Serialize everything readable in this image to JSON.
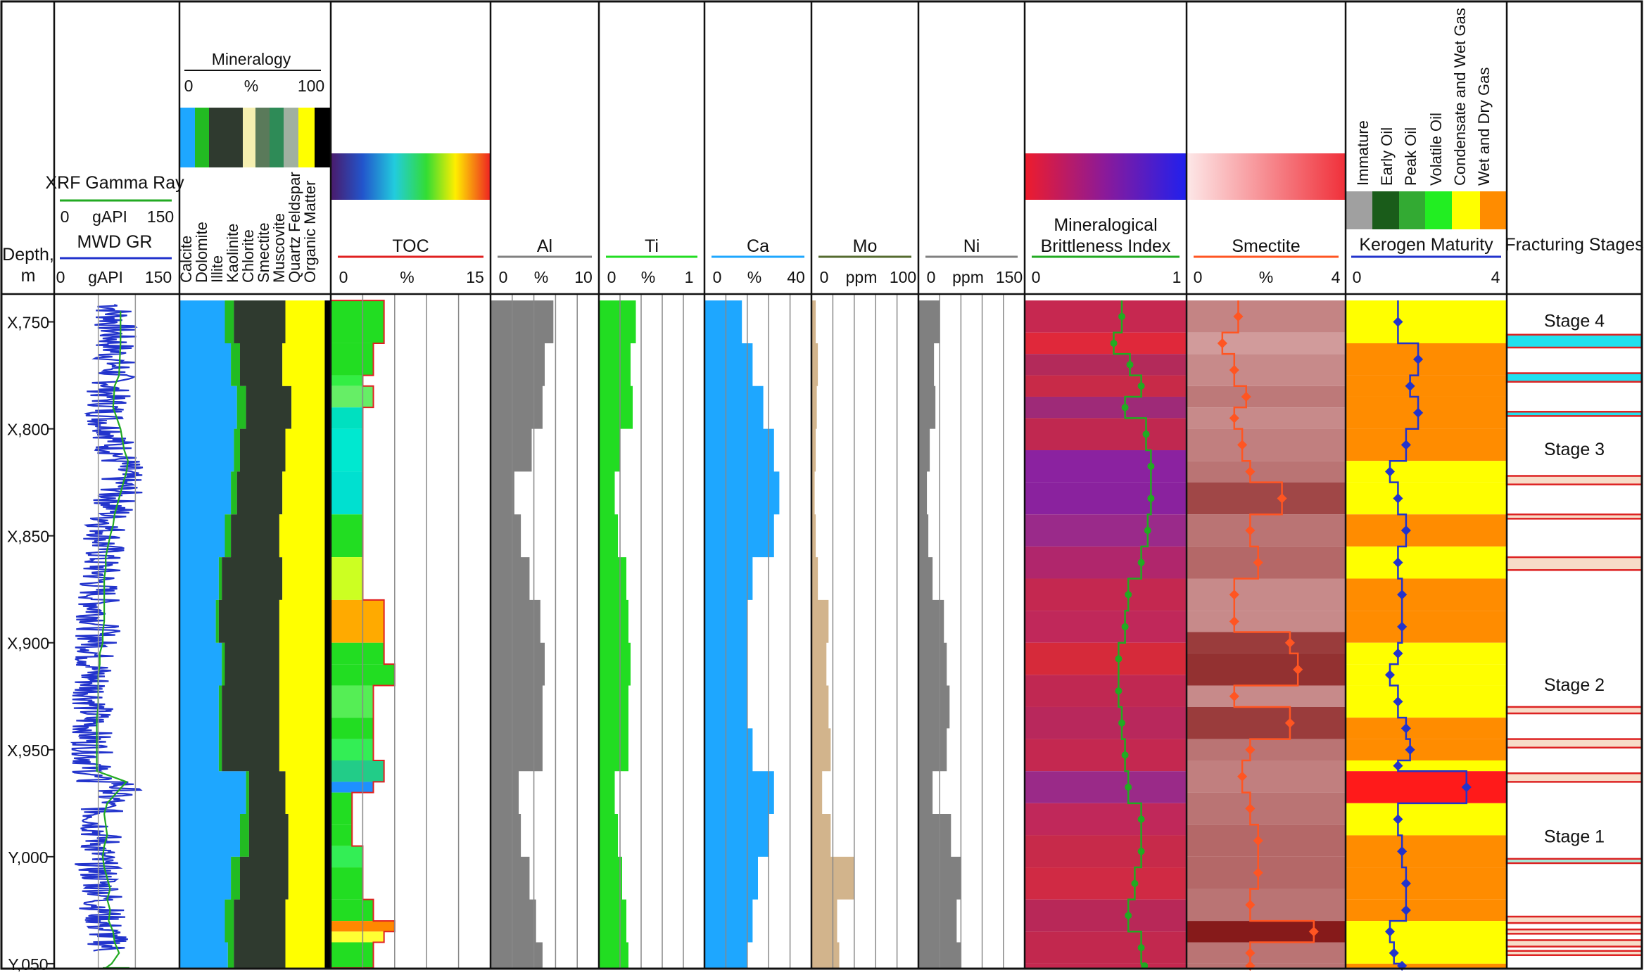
{
  "chart_data": {
    "type": "well-log",
    "depth_track": {
      "label": "Depth,",
      "unit": "m",
      "range": [
        4737,
        5052
      ],
      "ticks": [
        "X,750",
        "X,800",
        "X,850",
        "X,900",
        "X,950",
        "Y,000",
        "Y,050"
      ],
      "tick_values": [
        4750,
        4800,
        4850,
        4900,
        4950,
        5000,
        5050
      ]
    },
    "gamma_track": {
      "curves": [
        {
          "name": "XRF Gamma Ray",
          "min": "0",
          "unit": "gAPI",
          "max": "150",
          "color": "#22aa22",
          "x": [
            80,
            80,
            78,
            72,
            70,
            80,
            85,
            90,
            88,
            80,
            72,
            70,
            66,
            60,
            60,
            58,
            58,
            58,
            56,
            56,
            52,
            52,
            50,
            50,
            50,
            50,
            48,
            48,
            48,
            48,
            48,
            48,
            88,
            75,
            62,
            58,
            60,
            62,
            58,
            56,
            58,
            62,
            66,
            62,
            66,
            64,
            70,
            72,
            78,
            72,
            68,
            60,
            56,
            60,
            92
          ],
          "y": [
            4745,
            4760,
            4775,
            4780,
            4790,
            4800,
            4810,
            4815,
            4820,
            4830,
            4840,
            4845,
            4850,
            4860,
            4865,
            4870,
            4880,
            4890,
            4895,
            4900,
            4905,
            4910,
            4915,
            4920,
            4925,
            4930,
            4935,
            4940,
            4945,
            4950,
            4955,
            4960,
            4965,
            4970,
            4975,
            4980,
            4985,
            4990,
            4995,
            5000,
            5005,
            5010,
            5015,
            5020,
            5025,
            5030,
            5035,
            5040,
            5045,
            5048,
            5050,
            5052,
            5052,
            5052,
            5052
          ]
        },
        {
          "name": "MWD GR",
          "min": "0",
          "unit": "gAPI",
          "max": "150",
          "color": "#2233cc"
        }
      ],
      "gridlines": [
        50,
        100
      ]
    },
    "mineralogy": {
      "title": "Mineralogy",
      "scale_min": "0",
      "scale_unit": "%",
      "scale_max": "100",
      "components": [
        {
          "name": "Calcite",
          "color": "#1ea7ff"
        },
        {
          "name": "Dolomite",
          "color": "#22bb22"
        },
        {
          "name": "Illite",
          "color": "#2f3a2f"
        },
        {
          "name": "Kaolinite",
          "color": "#f5efb0"
        },
        {
          "name": "Chlorite",
          "color": "#5a7a5a"
        },
        {
          "name": "Smectite",
          "color": "#2e8b57"
        },
        {
          "name": "Muscovite",
          "color": "#a0b0a0"
        },
        {
          "name": "Quartz Feldspar",
          "color": "#ffff00"
        },
        {
          "name": "Organic Matter",
          "color": "#000000"
        }
      ],
      "depth": [
        4740,
        4760,
        4780,
        4800,
        4820,
        4840,
        4860,
        4880,
        4900,
        4920,
        4940,
        4960,
        4980,
        5000,
        5020,
        5040,
        5052
      ],
      "calcite": [
        30,
        34,
        38,
        36,
        34,
        30,
        26,
        24,
        28,
        26,
        26,
        44,
        40,
        34,
        30,
        32,
        32
      ],
      "dolomite": [
        6,
        6,
        6,
        4,
        4,
        4,
        2,
        2,
        2,
        2,
        2,
        2,
        6,
        6,
        6,
        4,
        4
      ],
      "clay": [
        34,
        28,
        30,
        30,
        30,
        32,
        40,
        40,
        36,
        38,
        38,
        24,
        26,
        32,
        34,
        34,
        34
      ],
      "quartz_feldspar": [
        26,
        28,
        22,
        26,
        28,
        30,
        28,
        30,
        30,
        30,
        30,
        26,
        24,
        24,
        26,
        26,
        26
      ],
      "organic": [
        4,
        4,
        4,
        4,
        4,
        4,
        4,
        4,
        4,
        4,
        4,
        4,
        4,
        4,
        4,
        4,
        4
      ]
    },
    "tracks": [
      {
        "name": "TOC",
        "min": "0",
        "unit": "%",
        "max": "15",
        "color": "#e02020",
        "fill": "#22dd22",
        "depth": [
          4740,
          4760,
          4775,
          4780,
          4790,
          4800,
          4820,
          4840,
          4860,
          4880,
          4900,
          4910,
          4920,
          4935,
          4945,
          4955,
          4965,
          4970,
          4985,
          4995,
          5005,
          5020,
          5030,
          5035,
          5040,
          5052
        ],
        "values": [
          5,
          4,
          3,
          4,
          3,
          3,
          3,
          3,
          3,
          5,
          5,
          6,
          4,
          4,
          4,
          5,
          4,
          2,
          2,
          3,
          3,
          4,
          6,
          5,
          4,
          4
        ]
      },
      {
        "name": "Al",
        "min": "0",
        "unit": "%",
        "max": "10",
        "color": "#808080",
        "depth": [
          4740,
          4760,
          4780,
          4800,
          4820,
          4840,
          4860,
          4880,
          4900,
          4920,
          4940,
          4960,
          4980,
          5000,
          5020,
          5040,
          5052
        ],
        "values": [
          5.8,
          5.0,
          4.8,
          3.8,
          2.2,
          2.8,
          3.6,
          4.6,
          5.0,
          4.8,
          4.8,
          2.6,
          2.8,
          3.6,
          4.2,
          4.8,
          4.8
        ]
      },
      {
        "name": "Ti",
        "min": "0",
        "unit": "%",
        "max": "1",
        "color": "#22dd22",
        "depth": [
          4740,
          4760,
          4780,
          4800,
          4820,
          4840,
          4860,
          4880,
          4900,
          4920,
          4940,
          4960,
          4980,
          5000,
          5020,
          5040,
          5052
        ],
        "values": [
          0.35,
          0.3,
          0.32,
          0.2,
          0.15,
          0.18,
          0.26,
          0.28,
          0.3,
          0.28,
          0.28,
          0.15,
          0.18,
          0.22,
          0.26,
          0.28,
          0.28
        ]
      },
      {
        "name": "Ca",
        "min": "0",
        "unit": "%",
        "max": "40",
        "color": "#1ea7ff",
        "depth": [
          4740,
          4760,
          4780,
          4800,
          4820,
          4840,
          4860,
          4880,
          4900,
          4920,
          4940,
          4960,
          4980,
          5000,
          5020,
          5040,
          5052
        ],
        "values": [
          14,
          18,
          22,
          26,
          28,
          26,
          18,
          16,
          16,
          16,
          18,
          26,
          24,
          20,
          18,
          16,
          16
        ]
      },
      {
        "name": "Mo",
        "min": "0",
        "unit": "ppm",
        "max": "100",
        "color": "#d2b48c",
        "depth": [
          4740,
          4760,
          4780,
          4800,
          4820,
          4840,
          4860,
          4880,
          4900,
          4920,
          4940,
          4960,
          4980,
          5000,
          5020,
          5040,
          5052
        ],
        "values": [
          4,
          6,
          5,
          4,
          3,
          4,
          6,
          16,
          14,
          16,
          18,
          10,
          18,
          40,
          24,
          26,
          20
        ]
      },
      {
        "name": "Ni",
        "min": "0",
        "unit": "ppm",
        "max": "150",
        "color": "#808080",
        "depth": [
          4740,
          4760,
          4780,
          4800,
          4820,
          4840,
          4860,
          4880,
          4900,
          4920,
          4940,
          4960,
          4980,
          5000,
          5020,
          5040,
          5052
        ],
        "values": [
          30,
          22,
          24,
          16,
          12,
          14,
          20,
          36,
          40,
          44,
          40,
          20,
          46,
          60,
          54,
          60,
          50
        ]
      }
    ],
    "brittleness": {
      "title_line1": "Mineralogical",
      "title_line2": "Brittleness Index",
      "min": "0",
      "max": "1",
      "color": "#22aa22",
      "depth": [
        4740,
        4755,
        4765,
        4775,
        4785,
        4795,
        4810,
        4825,
        4840,
        4855,
        4870,
        4885,
        4900,
        4915,
        4930,
        4945,
        4960,
        4975,
        4990,
        5005,
        5020,
        5035,
        5050
      ],
      "values": [
        0.6,
        0.55,
        0.65,
        0.72,
        0.62,
        0.75,
        0.78,
        0.78,
        0.76,
        0.72,
        0.64,
        0.62,
        0.58,
        0.58,
        0.6,
        0.62,
        0.64,
        0.72,
        0.72,
        0.68,
        0.64,
        0.72,
        0.74
      ]
    },
    "smectite": {
      "title": "Smectite",
      "min": "0",
      "unit": "%",
      "max": "4",
      "color": "#ff5522",
      "depth": [
        4740,
        4755,
        4765,
        4780,
        4790,
        4800,
        4815,
        4825,
        4840,
        4855,
        4870,
        4885,
        4895,
        4905,
        4920,
        4930,
        4945,
        4955,
        4970,
        4985,
        5000,
        5015,
        5030,
        5040,
        5050
      ],
      "values": [
        1.3,
        0.9,
        1.2,
        1.5,
        1.2,
        1.4,
        1.6,
        2.4,
        1.6,
        1.8,
        1.2,
        1.2,
        2.6,
        2.8,
        1.2,
        2.6,
        1.6,
        1.4,
        1.6,
        1.8,
        1.8,
        1.6,
        3.2,
        1.6,
        1.6
      ]
    },
    "kerogen": {
      "title": "Kerogen Maturity",
      "min": "0",
      "max": "4",
      "color": "#2233cc",
      "classes": [
        "Immature",
        "Early Oil",
        "Peak Oil",
        "Volatile Oil",
        "Condensate and Wet Gas",
        "Wet and Dry Gas"
      ],
      "class_colors": [
        "#a0a0a0",
        "#1a5c1a",
        "#33aa33",
        "#22ee22",
        "#ffff00",
        "#ff8c00"
      ],
      "depth": [
        4740,
        4760,
        4775,
        4785,
        4800,
        4815,
        4825,
        4840,
        4855,
        4870,
        4885,
        4900,
        4910,
        4920,
        4935,
        4945,
        4955,
        4960,
        4975,
        4990,
        5005,
        5020,
        5030,
        5040,
        5050
      ],
      "values": [
        1.3,
        1.8,
        1.6,
        1.8,
        1.5,
        1.1,
        1.3,
        1.5,
        1.3,
        1.4,
        1.4,
        1.3,
        1.1,
        1.3,
        1.5,
        1.6,
        1.3,
        3.0,
        1.3,
        1.4,
        1.5,
        1.5,
        1.1,
        1.2,
        1.4
      ]
    },
    "fracturing": {
      "title": "Fracturing Stages",
      "stages": [
        "Stage 4",
        "Stage 3",
        "Stage 2",
        "Stage 1"
      ]
    }
  }
}
